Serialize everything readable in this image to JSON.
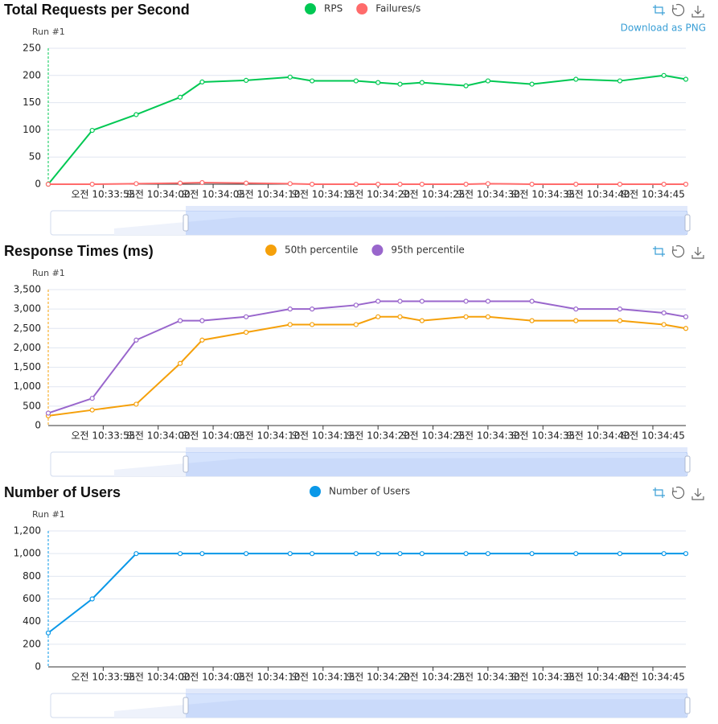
{
  "chart_data": [
    {
      "type": "line",
      "title": "Total Requests per Second",
      "y_label": "Run #1",
      "toolbox_tooltip": "Download as PNG",
      "x": [
        "10:33:50",
        "10:33:54",
        "10:33:58",
        "10:34:02",
        "10:34:04",
        "10:34:08",
        "10:34:12",
        "10:34:14",
        "10:34:18",
        "10:34:20",
        "10:34:22",
        "10:34:24",
        "10:34:28",
        "10:34:30",
        "10:34:34",
        "10:34:38",
        "10:34:42",
        "10:34:46",
        "10:34:48"
      ],
      "series": [
        {
          "name": "RPS",
          "color": "#00c853",
          "values": [
            0,
            99,
            128,
            160,
            188,
            191,
            197,
            190,
            190,
            187,
            184,
            187,
            181,
            190,
            184,
            193,
            190,
            200,
            193
          ]
        },
        {
          "name": "Failures/s",
          "color": "#ff6b6b",
          "values": [
            0,
            0,
            1,
            2,
            3,
            2,
            1,
            0,
            0,
            0,
            0,
            0,
            0,
            1,
            0,
            0,
            0,
            0,
            0
          ]
        }
      ],
      "xlim": [
        "10:33:50",
        "10:34:48"
      ],
      "xticks": [
        {
          "value": "10:33:55",
          "label": "오전 10:33:55"
        },
        {
          "value": "10:34:00",
          "label": "오전 10:34:00"
        },
        {
          "value": "10:34:05",
          "label": "오전 10:34:05"
        },
        {
          "value": "10:34:10",
          "label": "오전 10:34:10"
        },
        {
          "value": "10:34:15",
          "label": "오전 10:34:15"
        },
        {
          "value": "10:34:20",
          "label": "오전 10:34:20"
        },
        {
          "value": "10:34:25",
          "label": "오전 10:34:25"
        },
        {
          "value": "10:34:30",
          "label": "오전 10:34:30"
        },
        {
          "value": "10:34:35",
          "label": "오전 10:34:35"
        },
        {
          "value": "10:34:40",
          "label": "오전 10:34:40"
        },
        {
          "value": "10:34:45",
          "label": "오전 10:34:45"
        }
      ],
      "ylim": [
        0,
        250
      ],
      "yticks": [
        0,
        50,
        100,
        150,
        200,
        250
      ],
      "grid": true
    },
    {
      "type": "line",
      "title": "Response Times (ms)",
      "y_label": "Run #1",
      "x": [
        "10:33:50",
        "10:33:54",
        "10:33:58",
        "10:34:02",
        "10:34:04",
        "10:34:08",
        "10:34:12",
        "10:34:14",
        "10:34:18",
        "10:34:20",
        "10:34:22",
        "10:34:24",
        "10:34:28",
        "10:34:30",
        "10:34:34",
        "10:34:38",
        "10:34:42",
        "10:34:46",
        "10:34:48"
      ],
      "series": [
        {
          "name": "50th percentile",
          "color": "#f5a00a",
          "values": [
            250,
            400,
            550,
            1600,
            2200,
            2400,
            2600,
            2600,
            2600,
            2800,
            2800,
            2700,
            2800,
            2800,
            2700,
            2700,
            2700,
            2600,
            2500
          ]
        },
        {
          "name": "95th percentile",
          "color": "#9966cc",
          "values": [
            320,
            700,
            2200,
            2700,
            2700,
            2800,
            3000,
            3000,
            3100,
            3200,
            3200,
            3200,
            3200,
            3200,
            3200,
            3000,
            3000,
            2900,
            2800
          ]
        }
      ],
      "xlim": [
        "10:33:50",
        "10:34:48"
      ],
      "xticks": [
        {
          "value": "10:33:55",
          "label": "오전 10:33:55"
        },
        {
          "value": "10:34:00",
          "label": "오전 10:34:00"
        },
        {
          "value": "10:34:05",
          "label": "오전 10:34:05"
        },
        {
          "value": "10:34:10",
          "label": "오전 10:34:10"
        },
        {
          "value": "10:34:15",
          "label": "오전 10:34:15"
        },
        {
          "value": "10:34:20",
          "label": "오전 10:34:20"
        },
        {
          "value": "10:34:25",
          "label": "오전 10:34:25"
        },
        {
          "value": "10:34:30",
          "label": "오전 10:34:30"
        },
        {
          "value": "10:34:35",
          "label": "오전 10:34:35"
        },
        {
          "value": "10:34:40",
          "label": "오전 10:34:40"
        },
        {
          "value": "10:34:45",
          "label": "오전 10:34:45"
        }
      ],
      "ylim": [
        0,
        3500
      ],
      "yticks": [
        0,
        {
          "value": 500,
          "label": "500"
        },
        {
          "value": 1000,
          "label": "1,000"
        },
        {
          "value": 1500,
          "label": "1,500"
        },
        {
          "value": 2000,
          "label": "2,000"
        },
        {
          "value": 2500,
          "label": "2,500"
        },
        {
          "value": 3000,
          "label": "3,000"
        },
        {
          "value": 3500,
          "label": "3,500"
        }
      ],
      "grid": true
    },
    {
      "type": "line",
      "title": "Number of Users",
      "y_label": "Run #1",
      "x": [
        "10:33:50",
        "10:33:54",
        "10:33:58",
        "10:34:02",
        "10:34:04",
        "10:34:08",
        "10:34:12",
        "10:34:14",
        "10:34:18",
        "10:34:20",
        "10:34:22",
        "10:34:24",
        "10:34:28",
        "10:34:30",
        "10:34:34",
        "10:34:38",
        "10:34:42",
        "10:34:46",
        "10:34:48"
      ],
      "series": [
        {
          "name": "Number of Users",
          "color": "#0a98e8",
          "values": [
            300,
            600,
            1000,
            1000,
            1000,
            1000,
            1000,
            1000,
            1000,
            1000,
            1000,
            1000,
            1000,
            1000,
            1000,
            1000,
            1000,
            1000,
            1000
          ]
        }
      ],
      "xlim": [
        "10:33:50",
        "10:34:48"
      ],
      "xticks": [
        {
          "value": "10:33:55",
          "label": "오전 10:33:55"
        },
        {
          "value": "10:34:00",
          "label": "오전 10:34:00"
        },
        {
          "value": "10:34:05",
          "label": "오전 10:34:05"
        },
        {
          "value": "10:34:10",
          "label": "오전 10:34:10"
        },
        {
          "value": "10:34:15",
          "label": "오전 10:34:15"
        },
        {
          "value": "10:34:20",
          "label": "오전 10:34:20"
        },
        {
          "value": "10:34:25",
          "label": "오전 10:34:25"
        },
        {
          "value": "10:34:30",
          "label": "오전 10:34:30"
        },
        {
          "value": "10:34:35",
          "label": "오전 10:34:35"
        },
        {
          "value": "10:34:40",
          "label": "오전 10:34:40"
        },
        {
          "value": "10:34:45",
          "label": "오전 10:34:45"
        }
      ],
      "ylim": [
        0,
        1200
      ],
      "yticks": [
        0,
        200,
        400,
        600,
        800,
        {
          "value": 1000,
          "label": "1,000"
        },
        {
          "value": 1200,
          "label": "1,200"
        }
      ],
      "grid": true
    }
  ]
}
